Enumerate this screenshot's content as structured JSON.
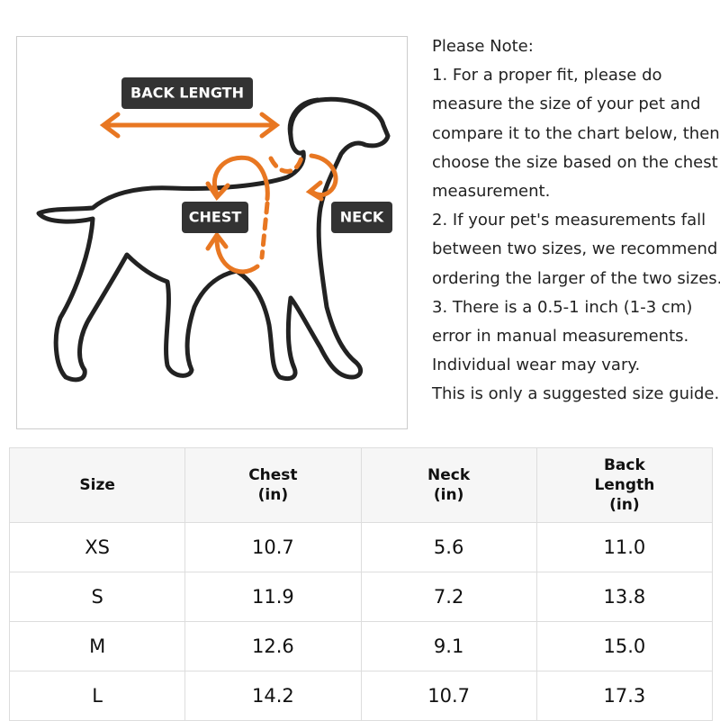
{
  "diagram": {
    "labels": [
      "BACK LENGTH",
      "CHEST",
      "NECK"
    ]
  },
  "notes": [
    "Please Note:",
    "1. For a proper fit, please do",
    "measure the size of your pet and",
    "compare it to the chart below, then",
    "choose the size based on the chest",
    "measurement.",
    "2. If your pet's measurements fall",
    "between two sizes, we recommend",
    "ordering the larger of the two sizes.",
    "3. There is a 0.5-1 inch (1-3 cm)",
    "error in manual measurements.",
    "Individual wear may vary.",
    "This is only a suggested size guide."
  ],
  "table": {
    "header": [
      "Size",
      "Chest\n(in)",
      "Neck\n(in)",
      "Back\nLength\n(in)"
    ],
    "rows": [
      [
        "XS",
        "10.7",
        "5.6",
        "11.0"
      ],
      [
        "S",
        "11.9",
        "7.2",
        "13.8"
      ],
      [
        "M",
        "12.6",
        "9.1",
        "15.0"
      ],
      [
        "L",
        "14.2",
        "10.7",
        "17.3"
      ]
    ]
  }
}
